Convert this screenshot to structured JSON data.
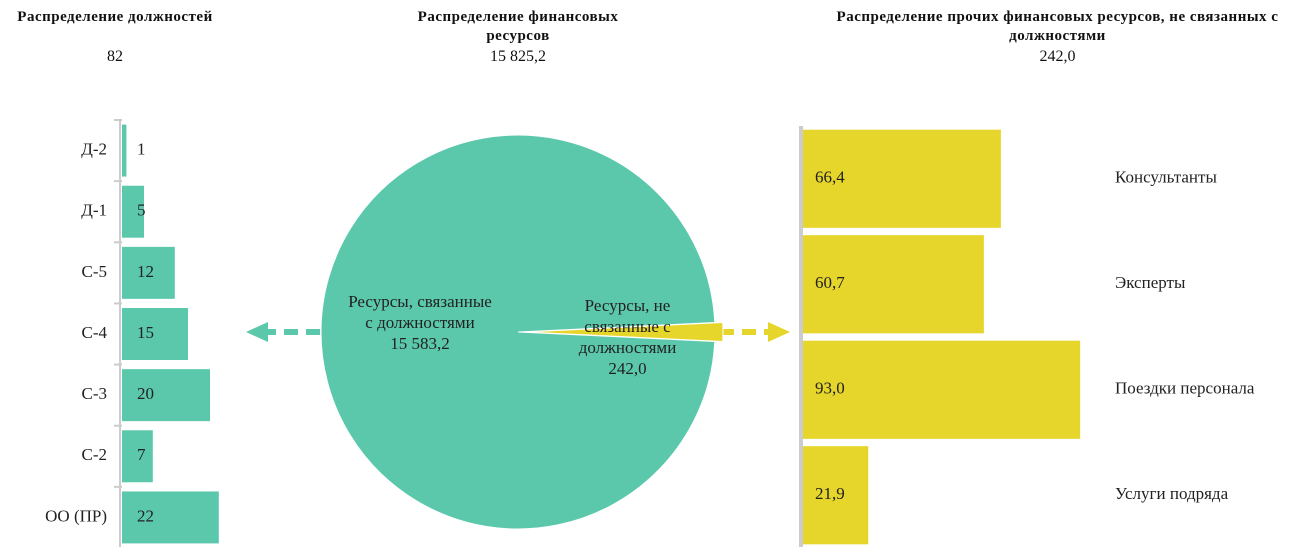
{
  "chart_data": [
    {
      "type": "hbar",
      "title": "Распределение должностей",
      "subtitle": "82",
      "categories": [
        "Д-2",
        "Д-1",
        "С-5",
        "С-4",
        "С-3",
        "С-2",
        "ОО (ПР)"
      ],
      "values": [
        1,
        5,
        12,
        15,
        20,
        7,
        22
      ],
      "color": "#5bc8ab",
      "xlim": [
        0,
        40
      ]
    },
    {
      "type": "pie",
      "title": "Распределение финансовых ресурсов",
      "subtitle": "15 825,2",
      "labels": [
        "Ресурсы, связанные с должностями",
        "Ресурсы, не связанные с должностями"
      ],
      "values": [
        15583.2,
        242.0
      ],
      "value_labels": [
        "15 583,2",
        "242,0"
      ],
      "colors": [
        "#5bc8ab",
        "#e6d52a"
      ]
    },
    {
      "type": "hbar",
      "title": "Распределение прочих финансовых ресурсов, не связанных с должностями",
      "subtitle": "242,0",
      "categories": [
        "Консультанты",
        "Эксперты",
        "Поездки персонала",
        "Услуги подряда"
      ],
      "values": [
        66.4,
        60.7,
        93.0,
        21.9
      ],
      "value_labels": [
        "66,4",
        "60,7",
        "93,0",
        "21,9"
      ],
      "color": "#e6d52a",
      "xlim": [
        0,
        100
      ]
    }
  ]
}
